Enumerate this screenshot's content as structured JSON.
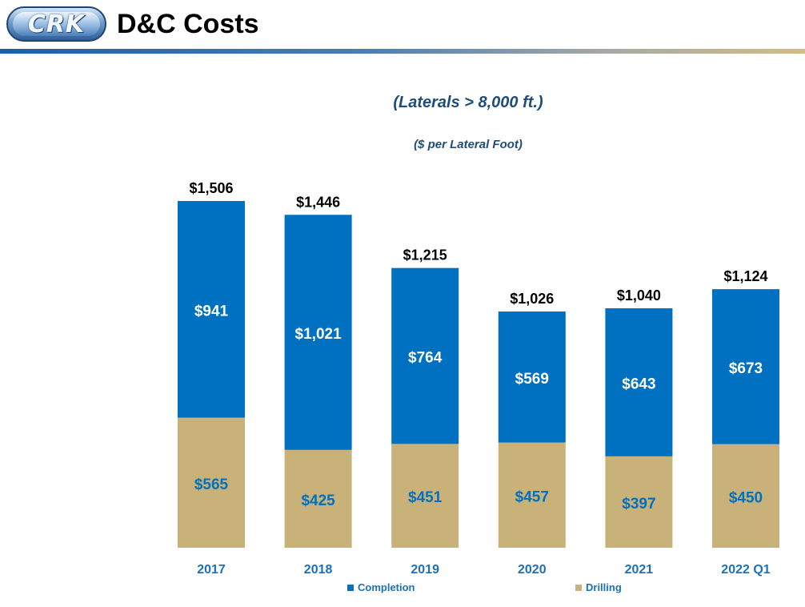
{
  "header": {
    "logo_text": "CRK",
    "title": "D&C Costs"
  },
  "colors": {
    "completion": "#0070c0",
    "drilling": "#c8b27a",
    "category_label": "#1d70b7",
    "title": "#1e4d7a"
  },
  "legend": {
    "completion_label": "Completion",
    "drilling_label": "Drilling"
  },
  "chart_data": {
    "type": "bar",
    "stacked": true,
    "title": "(Laterals > 8,000 ft.)",
    "subtitle": "($ per Lateral Foot)",
    "categories": [
      "2017",
      "2018",
      "2019",
      "2020",
      "2021",
      "2022 Q1"
    ],
    "series": [
      {
        "name": "Drilling",
        "values": [
          565,
          425,
          451,
          457,
          397,
          450
        ],
        "labels": [
          "$565",
          "$425",
          "$451",
          "$457",
          "$397",
          "$450"
        ]
      },
      {
        "name": "Completion",
        "values": [
          941,
          1021,
          764,
          569,
          643,
          673
        ],
        "labels": [
          "$941",
          "$1,021",
          "$764",
          "$569",
          "$643",
          "$673"
        ]
      }
    ],
    "totals": [
      1506,
      1446,
      1215,
      1026,
      1040,
      1124
    ],
    "total_labels": [
      "$1,506",
      "$1,446",
      "$1,215",
      "$1,026",
      "$1,040",
      "$1,124"
    ],
    "ylim": [
      0,
      1600
    ],
    "grid": false,
    "legend_position": "bottom"
  }
}
